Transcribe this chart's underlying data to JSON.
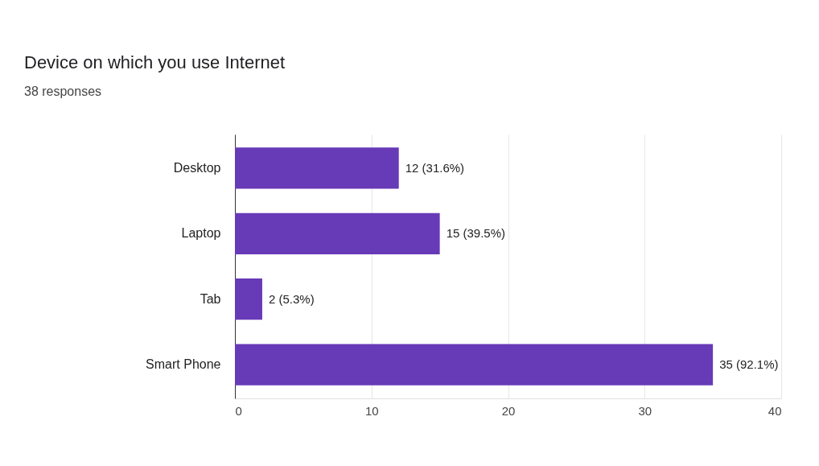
{
  "chart_data": {
    "type": "bar",
    "orientation": "horizontal",
    "title": "Device on which you use Internet",
    "subtitle": "38 responses",
    "categories": [
      "Desktop",
      "Laptop",
      "Tab",
      "Smart Phone"
    ],
    "values": [
      12,
      15,
      2,
      35
    ],
    "value_labels": [
      "12 (31.6%)",
      "15 (39.5%)",
      "2 (5.3%)",
      "35 (92.1%)"
    ],
    "color": "#673ab7",
    "xlim": [
      0,
      40
    ],
    "xticks": [
      0,
      10,
      20,
      30,
      40
    ],
    "grid": "x"
  }
}
